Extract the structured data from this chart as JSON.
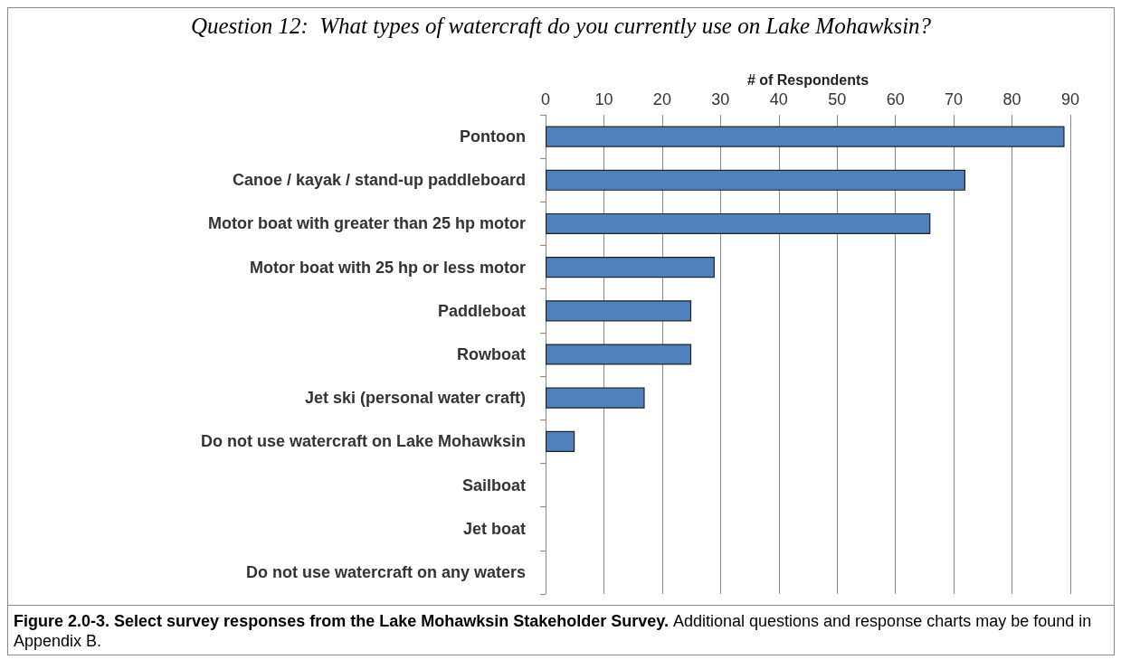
{
  "chart_data": {
    "type": "bar",
    "orientation": "horizontal",
    "title": "Question 12:  What types of watercraft do you currently use on Lake Mohawksin?",
    "xlabel": "# of Respondents",
    "categories": [
      "Pontoon",
      "Canoe / kayak / stand-up paddleboard",
      "Motor boat with greater than 25 hp motor",
      "Motor boat with 25 hp or less motor",
      "Paddleboat",
      "Rowboat",
      "Jet ski (personal water craft)",
      "Do not use watercraft on Lake Mohawksin",
      "Sailboat",
      "Jet boat",
      "Do not use watercraft on any waters"
    ],
    "values": [
      89,
      72,
      66,
      29,
      25,
      25,
      17,
      5,
      0,
      0,
      0
    ],
    "color": "#4f81bd",
    "xlim": [
      0,
      90
    ],
    "xticks": [
      0,
      10,
      20,
      30,
      40,
      50,
      60,
      70,
      80,
      90
    ],
    "grid": "x",
    "annotations": [
      "Figure 2.0-3.  Select survey responses from the Lake Mohawksin Stakeholder Survey.",
      "Additional questions and response charts may be found in Appendix B."
    ]
  }
}
